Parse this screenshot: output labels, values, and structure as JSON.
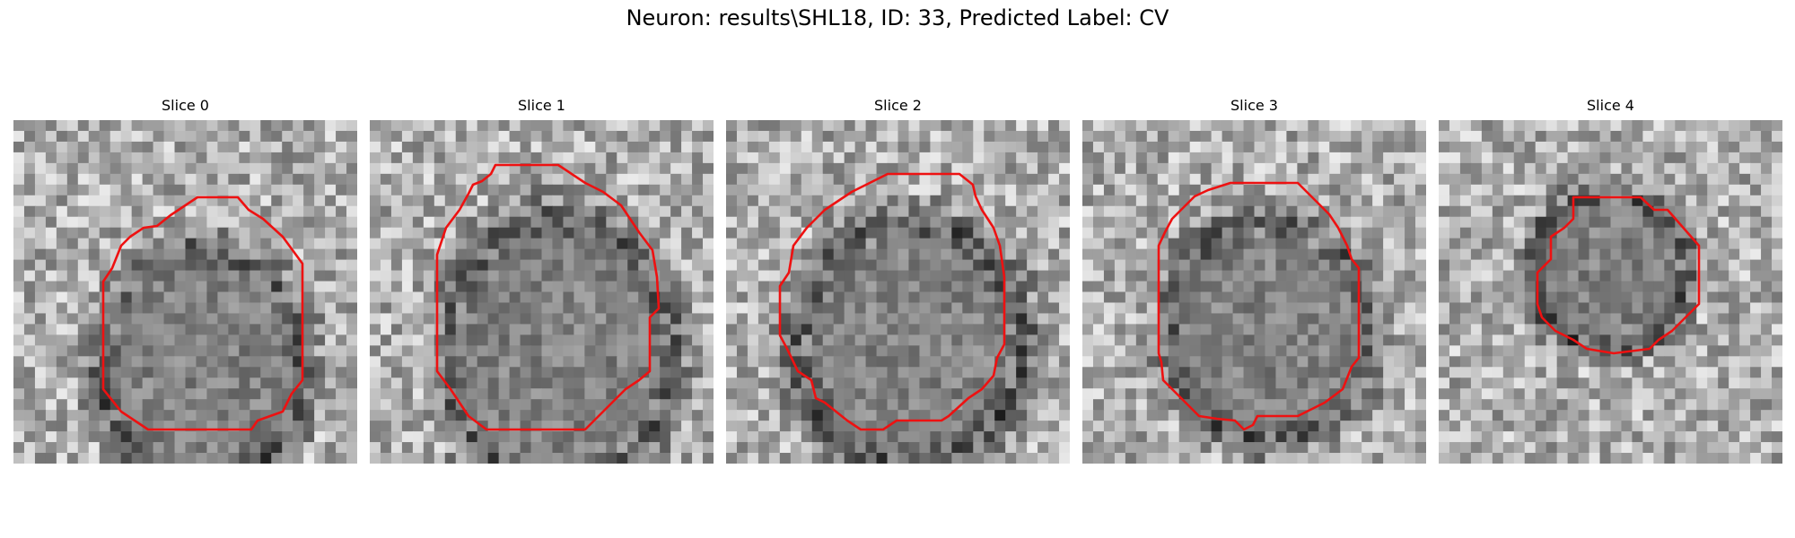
{
  "figure": {
    "title": "Neuron: results\\SHL18, ID: 33, Predicted Label: CV"
  },
  "slices": [
    {
      "label": "Slice 0"
    },
    {
      "label": "Slice 1"
    },
    {
      "label": "Slice 2"
    },
    {
      "label": "Slice 3"
    },
    {
      "label": "Slice 4"
    }
  ],
  "colors": {
    "contour": "#ee1111",
    "background": "#ffffff"
  },
  "icons": {
    "image": "grayscale-microscopy-patch",
    "overlay": "red-polygon-contour"
  }
}
